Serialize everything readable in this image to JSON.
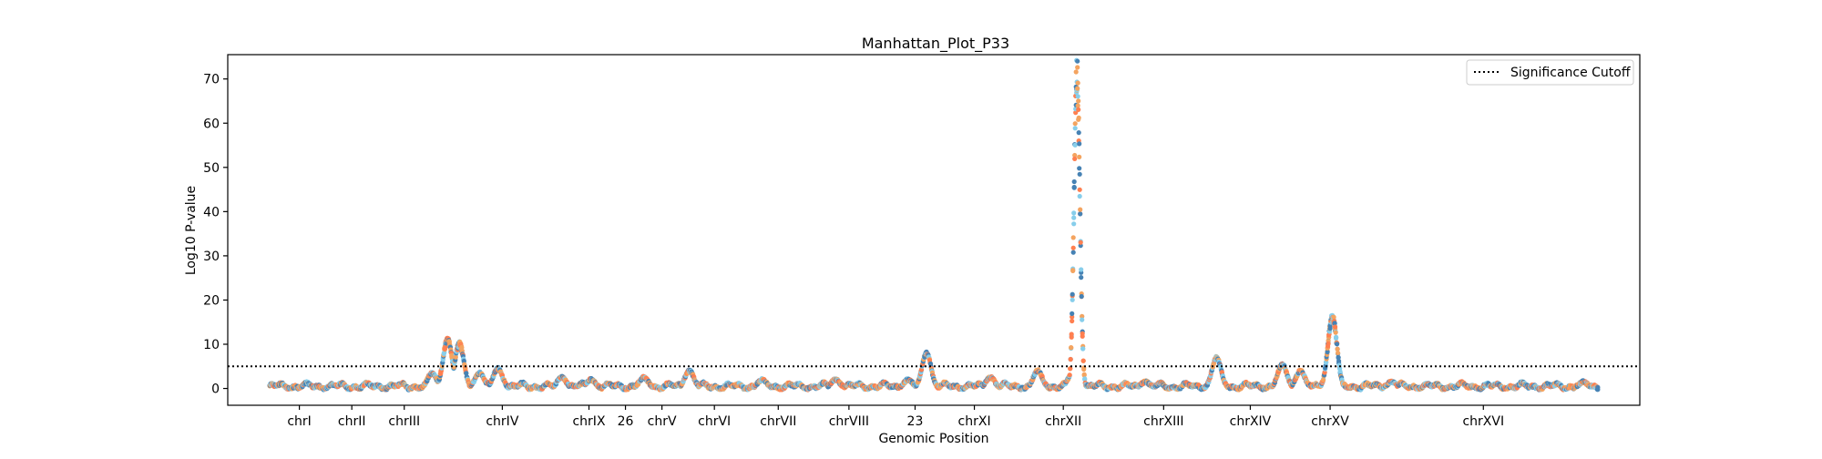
{
  "chart_data": {
    "type": "scatter",
    "title": "Manhattan_Plot_P33",
    "xlabel": "Genomic Position",
    "ylabel": "Log10 P-value",
    "ylim": [
      -3.8,
      75.5
    ],
    "xlim": [
      -46,
      1502
    ],
    "yticks": [
      0,
      10,
      20,
      30,
      40,
      50,
      60,
      70
    ],
    "grid": false,
    "legend": {
      "placement": "top-right",
      "entries": [
        {
          "label": "Significance Cutoff",
          "style": "dotted"
        }
      ]
    },
    "significance_cutoff": 5,
    "series_colors": [
      "#4682B4",
      "#FF7F50",
      "#87CEEB",
      "#F4A460"
    ],
    "chromosomes": [
      {
        "label": "chrI",
        "start": 0,
        "end": 65,
        "color_index": 0
      },
      {
        "label": "chrII",
        "start": 65,
        "end": 115,
        "color_index": 1
      },
      {
        "label": "chrIII",
        "start": 115,
        "end": 180,
        "color_index": 2
      },
      {
        "label": "chrIV",
        "start": 180,
        "end": 330,
        "color_index": 3
      },
      {
        "label": "chrIX",
        "start": 330,
        "end": 370,
        "color_index": 0
      },
      {
        "label": "26",
        "start": 370,
        "end": 410,
        "color_index": 1
      },
      {
        "label": "chrV",
        "start": 410,
        "end": 450,
        "color_index": 2
      },
      {
        "label": "chrVI",
        "start": 450,
        "end": 525,
        "color_index": 3
      },
      {
        "label": "chrVII",
        "start": 525,
        "end": 590,
        "color_index": 0
      },
      {
        "label": "chrVIII",
        "start": 590,
        "end": 680,
        "color_index": 1
      },
      {
        "label": "23",
        "start": 680,
        "end": 735,
        "color_index": 2
      },
      {
        "label": "chrXI",
        "start": 735,
        "end": 810,
        "color_index": 3
      },
      {
        "label": "chrXII",
        "start": 810,
        "end": 930,
        "color_index": 0
      },
      {
        "label": "chrXIII",
        "start": 930,
        "end": 1030,
        "color_index": 1
      },
      {
        "label": "chrXIV",
        "start": 1030,
        "end": 1120,
        "color_index": 2
      },
      {
        "label": "chrXV",
        "start": 1120,
        "end": 1205,
        "color_index": 3
      },
      {
        "label": "chrXVI",
        "start": 1205,
        "end": 1456,
        "color_index": 0
      }
    ],
    "peaks": [
      {
        "x": 178,
        "value": 3.5
      },
      {
        "x": 195,
        "value": 11
      },
      {
        "x": 208,
        "value": 10
      },
      {
        "x": 230,
        "value": 3.5
      },
      {
        "x": 250,
        "value": 4.5
      },
      {
        "x": 320,
        "value": 2.5
      },
      {
        "x": 352,
        "value": 2
      },
      {
        "x": 410,
        "value": 2.5
      },
      {
        "x": 460,
        "value": 4
      },
      {
        "x": 540,
        "value": 2
      },
      {
        "x": 620,
        "value": 2
      },
      {
        "x": 700,
        "value": 2
      },
      {
        "x": 720,
        "value": 8
      },
      {
        "x": 790,
        "value": 2.5
      },
      {
        "x": 842,
        "value": 4
      },
      {
        "x": 880,
        "value": 3.5
      },
      {
        "x": 885,
        "value": 71
      },
      {
        "x": 960,
        "value": 1.5
      },
      {
        "x": 1038,
        "value": 7
      },
      {
        "x": 1110,
        "value": 5.5
      },
      {
        "x": 1130,
        "value": 4
      },
      {
        "x": 1165,
        "value": 16
      },
      {
        "x": 1230,
        "value": 1.5
      },
      {
        "x": 1440,
        "value": 1.5
      }
    ]
  }
}
